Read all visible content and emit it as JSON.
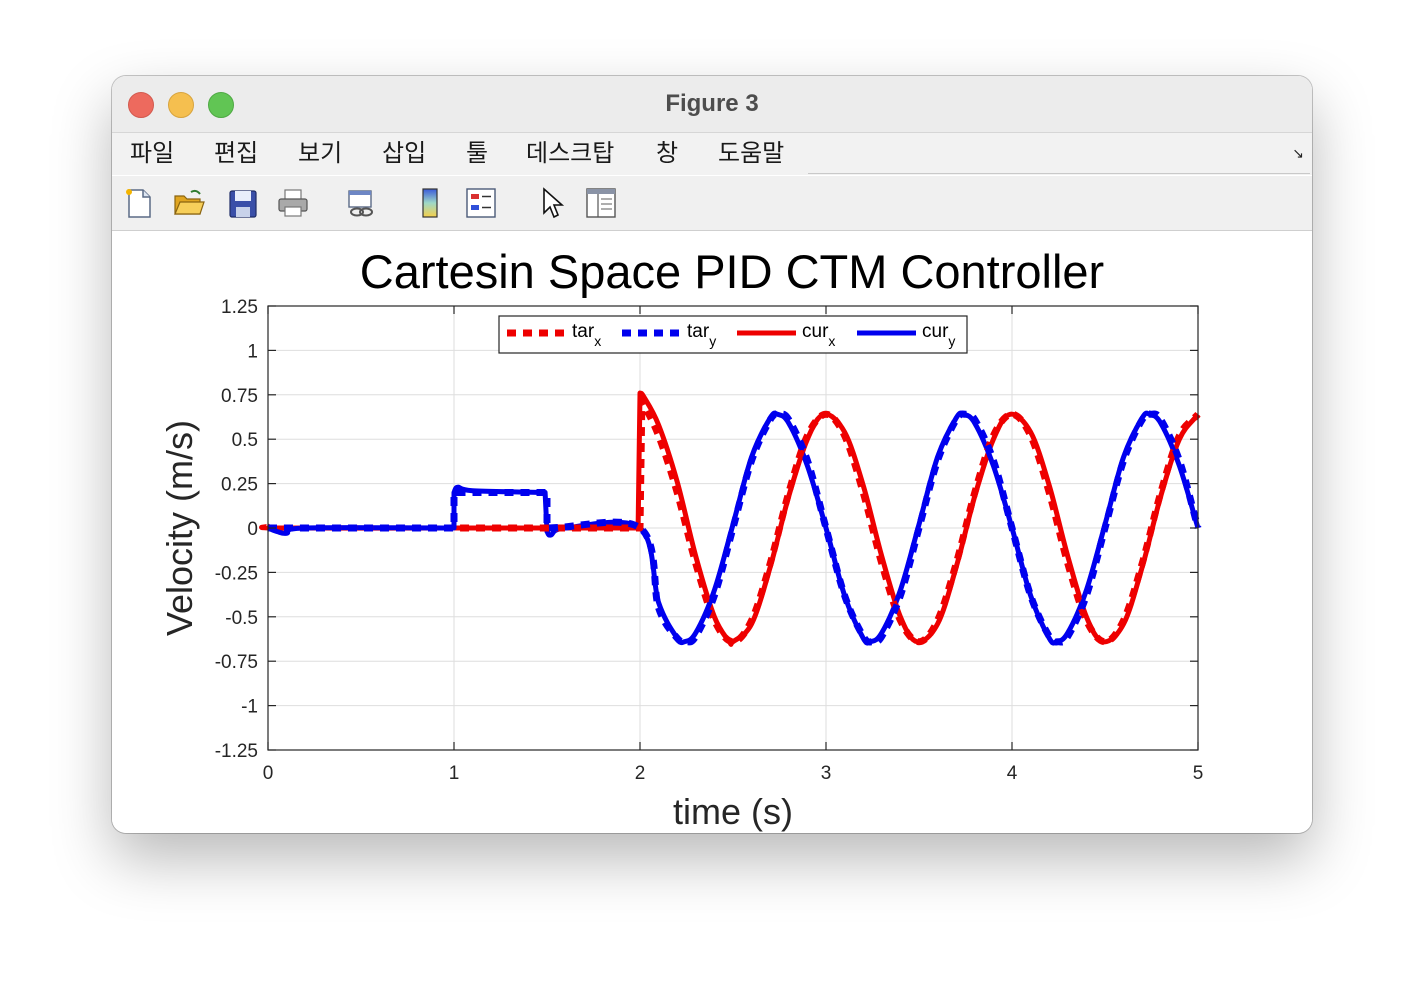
{
  "window": {
    "title": "Figure 3"
  },
  "menu": [
    "파일",
    "편집",
    "보기",
    "삽입",
    "툴",
    "데스크탑",
    "창",
    "도움말"
  ],
  "toolbar": [
    "new-file-icon",
    "open-folder-icon",
    "save-icon",
    "print-icon",
    "link-plot-icon",
    "colorbar-icon",
    "legend-icon",
    "pointer-icon",
    "property-editor-icon"
  ],
  "colors": {
    "red": "#ee0000",
    "blue": "#0000ee"
  },
  "chart_data": {
    "type": "line",
    "title": "Cartesin Space PID CTM Controller",
    "xlabel": "time (s)",
    "ylabel": "Velocity (m/s)",
    "xlim": [
      0,
      5
    ],
    "ylim": [
      -1.25,
      1.25
    ],
    "xticks": [
      "0",
      "1",
      "2",
      "3",
      "4",
      "5"
    ],
    "yticks": [
      "1.25",
      "1",
      "0.75",
      "0.5",
      "0.25",
      "0",
      "-0.25",
      "-0.5",
      "-0.75",
      "-1",
      "-1.25"
    ],
    "grid": true,
    "legend_position": "top",
    "legend": [
      {
        "base": "tar",
        "sub": "x",
        "style": "dashed",
        "color": "#ee0000"
      },
      {
        "base": "tar",
        "sub": "y",
        "style": "dashed",
        "color": "#0000ee"
      },
      {
        "base": "cur",
        "sub": "x",
        "style": "solid",
        "color": "#ee0000"
      },
      {
        "base": "cur",
        "sub": "y",
        "style": "solid",
        "color": "#0000ee"
      }
    ],
    "series": [
      {
        "name": "tar_x",
        "style": "dashed",
        "color": "#ee0000",
        "x": [
          0,
          1,
          1.5,
          2,
          2.01,
          2.1,
          2.2,
          2.3,
          2.4,
          2.5,
          2.6,
          2.7,
          2.8,
          2.9,
          3.0,
          3.1,
          3.2,
          3.3,
          3.4,
          3.5,
          3.6,
          3.7,
          3.8,
          3.9,
          4.0,
          4.1,
          4.2,
          4.3,
          4.4,
          4.5,
          4.6,
          4.7,
          4.8,
          4.9,
          5.0
        ],
        "y": [
          0,
          0,
          0,
          0,
          0.72,
          0.52,
          0.2,
          -0.2,
          -0.52,
          -0.64,
          -0.52,
          -0.2,
          0.2,
          0.52,
          0.64,
          0.52,
          0.2,
          -0.2,
          -0.52,
          -0.64,
          -0.52,
          -0.2,
          0.2,
          0.52,
          0.64,
          0.52,
          0.2,
          -0.2,
          -0.52,
          -0.64,
          -0.52,
          -0.2,
          0.2,
          0.52,
          0.64
        ]
      },
      {
        "name": "tar_y",
        "style": "dashed",
        "color": "#0000ee",
        "x": [
          0,
          1,
          1.0,
          1.5,
          1.5,
          2.0,
          2.1,
          2.2,
          2.25,
          2.3,
          2.4,
          2.5,
          2.6,
          2.7,
          2.75,
          2.8,
          2.9,
          3.0,
          3.1,
          3.2,
          3.25,
          3.3,
          3.4,
          3.5,
          3.6,
          3.7,
          3.75,
          3.8,
          3.9,
          4.0,
          4.1,
          4.2,
          4.25,
          4.3,
          4.4,
          4.5,
          4.6,
          4.7,
          4.75,
          4.8,
          4.9,
          5.0
        ],
        "y": [
          0,
          0,
          0.2,
          0.2,
          0,
          0,
          -0.45,
          -0.62,
          -0.64,
          -0.61,
          -0.38,
          0,
          0.38,
          0.61,
          0.64,
          0.61,
          0.38,
          0,
          -0.38,
          -0.61,
          -0.64,
          -0.61,
          -0.38,
          0,
          0.38,
          0.61,
          0.64,
          0.61,
          0.38,
          0,
          -0.38,
          -0.61,
          -0.64,
          -0.61,
          -0.38,
          0,
          0.38,
          0.61,
          0.64,
          0.61,
          0.38,
          0
        ]
      },
      {
        "name": "cur_x",
        "style": "solid",
        "color": "#ee0000",
        "x": [
          0,
          0.05,
          1,
          1.5,
          1.99,
          2.0,
          2.02,
          2.1,
          2.2,
          2.3,
          2.4,
          2.48,
          2.5,
          2.6,
          2.7,
          2.8,
          2.9,
          2.99,
          3.1,
          3.2,
          3.3,
          3.4,
          3.49,
          3.6,
          3.7,
          3.8,
          3.9,
          3.99,
          4.1,
          4.2,
          4.3,
          4.4,
          4.49,
          4.6,
          4.7,
          4.8,
          4.9,
          5.0
        ],
        "y": [
          0.01,
          0,
          0,
          0,
          0,
          0.76,
          0.74,
          0.58,
          0.26,
          -0.16,
          -0.5,
          -0.64,
          -0.64,
          -0.54,
          -0.22,
          0.18,
          0.5,
          0.64,
          0.54,
          0.24,
          -0.16,
          -0.5,
          -0.64,
          -0.54,
          -0.22,
          0.18,
          0.5,
          0.64,
          0.54,
          0.24,
          -0.16,
          -0.5,
          -0.64,
          -0.54,
          -0.22,
          0.18,
          0.5,
          0.64
        ]
      },
      {
        "name": "cur_y",
        "style": "solid",
        "color": "#0000ee",
        "x": [
          0,
          0.05,
          0.1,
          0.2,
          1,
          1.0,
          1.02,
          1.1,
          1.49,
          1.5,
          1.52,
          1.6,
          2.0,
          2.1,
          2.2,
          2.24,
          2.3,
          2.4,
          2.5,
          2.6,
          2.7,
          2.74,
          2.8,
          2.9,
          3.0,
          3.1,
          3.2,
          3.24,
          3.3,
          3.4,
          3.5,
          3.6,
          3.7,
          3.74,
          3.8,
          3.9,
          4.0,
          4.1,
          4.2,
          4.24,
          4.3,
          4.4,
          4.5,
          4.6,
          4.7,
          4.74,
          4.8,
          4.9,
          5.0
        ],
        "y": [
          0,
          -0.02,
          -0.03,
          0,
          0,
          0.2,
          0.23,
          0.21,
          0.2,
          -0.02,
          -0.04,
          0,
          0,
          -0.42,
          -0.62,
          -0.64,
          -0.59,
          -0.35,
          0.02,
          0.4,
          0.62,
          0.64,
          0.59,
          0.35,
          0,
          -0.38,
          -0.62,
          -0.64,
          -0.59,
          -0.35,
          0.02,
          0.4,
          0.62,
          0.64,
          0.59,
          0.35,
          0,
          -0.38,
          -0.62,
          -0.64,
          -0.59,
          -0.35,
          0.02,
          0.4,
          0.62,
          0.64,
          0.59,
          0.35,
          0
        ]
      }
    ]
  }
}
